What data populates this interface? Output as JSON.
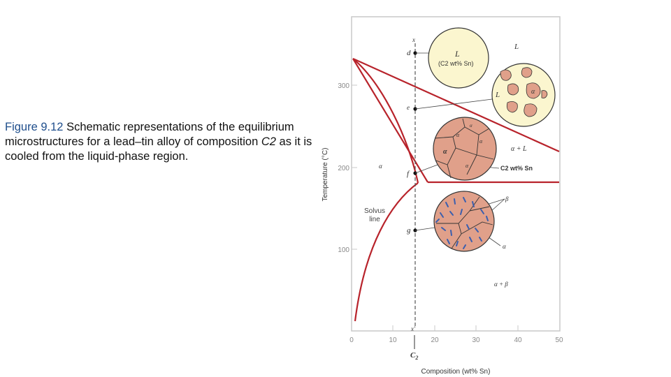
{
  "caption": {
    "fig_label": "Figure 9.12",
    "before_c2": "Schematic representations of the equilibrium microstructures for a lead–tin alloy of composition",
    "c2": "C2",
    "after_c2": "as it is cooled from the liquid-phase region."
  },
  "axes": {
    "xlabel": "Composition (wt% Sn)",
    "ylabel": "Temperature (°C)",
    "x_ticks": [
      "0",
      "10",
      "20",
      "30",
      "40",
      "50"
    ],
    "y_ticks": [
      "100",
      "200",
      "300"
    ],
    "c2_label": "C2",
    "c2_sub": "2",
    "c2_base": "C"
  },
  "diagram_labels": {
    "d": "d",
    "e": "e",
    "f": "f",
    "g": "g",
    "x_top": "x",
    "x_bottom": "x'",
    "L_region": "L",
    "alpha_region": "α",
    "alpha_L": "α + L",
    "alpha_beta": "α + β",
    "solvus_line1": "Solvus",
    "solvus_line2": "line",
    "c2_comp_label": "C2 wt% Sn",
    "circle1_L": "L",
    "circle1_comp": "(C2 wt% Sn)",
    "circle2_L": "L",
    "circle2_alpha": "α",
    "circle3_alpha1": "α",
    "circle3_alpha2": "α",
    "circle3_alpha3": "α",
    "circle3_alpha4": "α",
    "circle3_alpha5": "α",
    "beta_label": "β",
    "alpha_label_low": "α"
  },
  "colors": {
    "phase_line": "#b8232b",
    "grid_frame": "#c9c9c9",
    "liquid_fill": "#fbf6cf",
    "grain_fill": "#e0a08a",
    "beta_particle": "#3b5fae",
    "figure_label": "#1f4e8c"
  }
}
